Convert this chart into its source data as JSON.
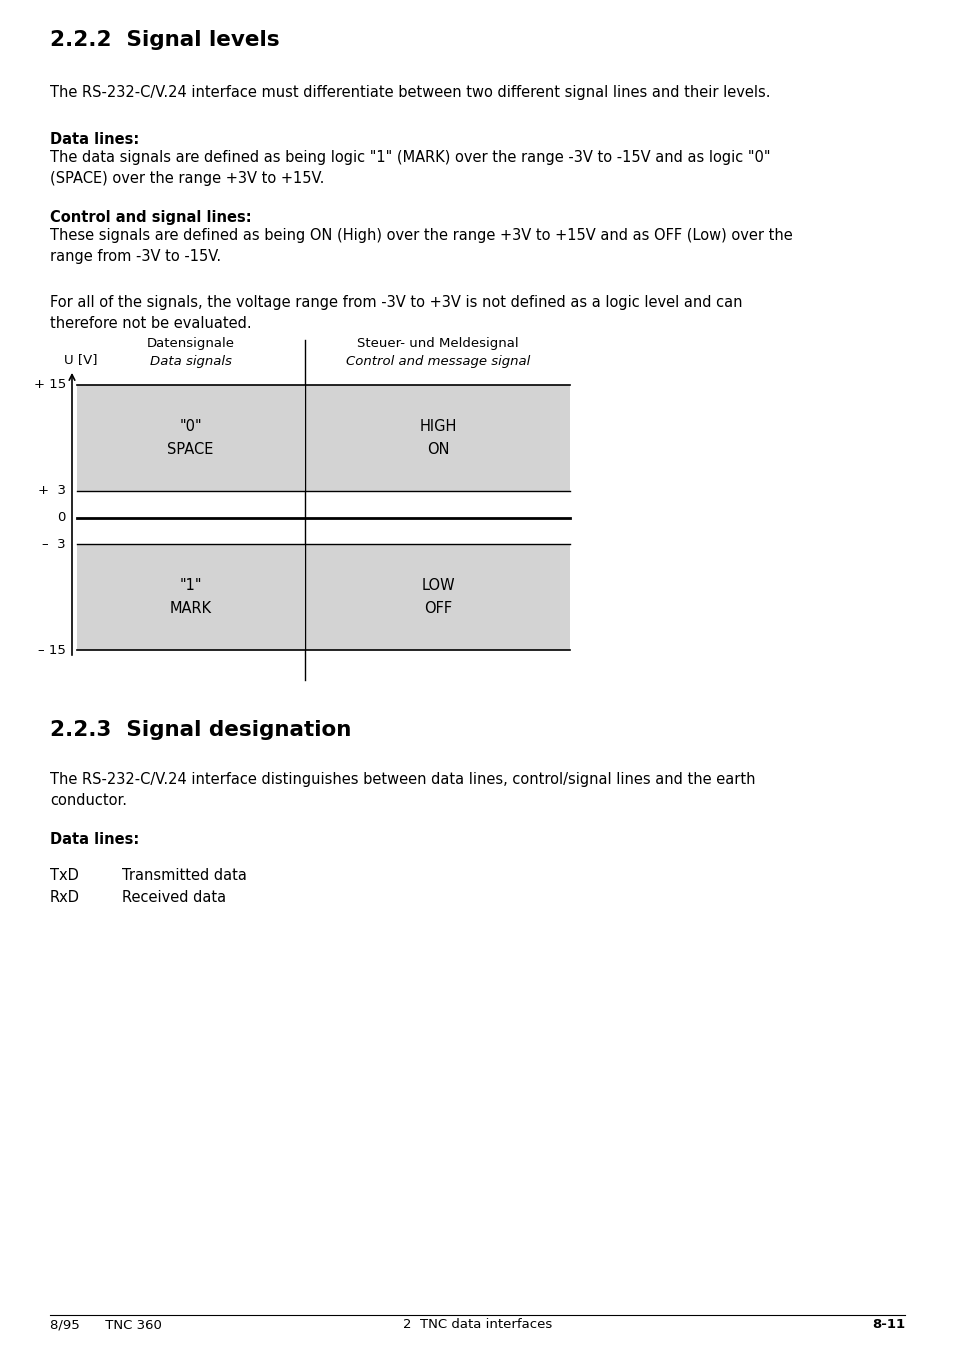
{
  "bg_color": "#ffffff",
  "section1_title": "2.2.2  Signal levels",
  "section1_body1": "The RS-232-C/V.24 interface must differentiate between two different signal lines and their levels.",
  "section1_header2": "Data lines:",
  "section1_body2": "The data signals are defined as being logic \"1\" (MARK) over the range -3V to -15V and as logic \"0\"\n(SPACE) over the range +3V to +15V.",
  "section1_header3": "Control and signal lines:",
  "section1_body3": "These signals are defined as being ON (High) over the range +3V to +15V and as OFF (Low) over the\nrange from -3V to -15V.",
  "section1_body4": "For all of the signals, the voltage range from -3V to +3V is not defined as a logic level and can\ntherefore not be evaluated.",
  "diagram_ylabel": "U [V]",
  "diagram_col1_header1": "Datensignale",
  "diagram_col1_header2": "Data signals",
  "diagram_col2_header1": "Steuer- und Meldesignal",
  "diagram_col2_header2": "Control and message signal",
  "diagram_box_color": "#d3d3d3",
  "diagram_box1_line1": "\"0\"",
  "diagram_box1_line2": "SPACE",
  "diagram_box2_line1": "HIGH",
  "diagram_box2_line2": "ON",
  "diagram_box3_line1": "\"1\"",
  "diagram_box3_line2": "MARK",
  "diagram_box4_line1": "LOW",
  "diagram_box4_line2": "OFF",
  "section2_title": "2.2.3  Signal designation",
  "section2_body1": "The RS-232-C/V.24 interface distinguishes between data lines, control/signal lines and the earth\nconductor.",
  "section2_header1": "Data lines:",
  "section2_items": [
    [
      "TxD",
      "Transmitted data"
    ],
    [
      "RxD",
      "Received data"
    ]
  ],
  "footer_left": "8/95      TNC 360",
  "footer_center": "2  TNC data interfaces",
  "footer_right": "8-11"
}
